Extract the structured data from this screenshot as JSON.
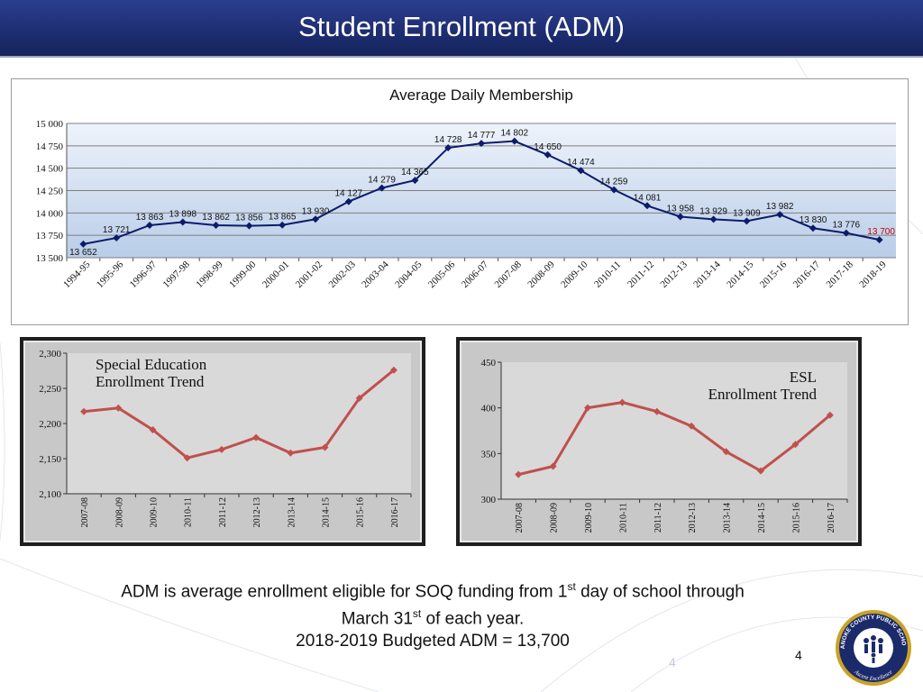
{
  "header": {
    "title": "Student Enrollment (ADM)"
  },
  "colors": {
    "header_bg": "#1b2a6b",
    "main_line": "#0d1b6b",
    "last_label": "#cc0000",
    "small_line": "#c0504d",
    "small_bg": "#c8c8c8"
  },
  "chart_data": [
    {
      "type": "line",
      "title": "Average Daily Membership",
      "categories": [
        "1994-95",
        "1995-96",
        "1996-97",
        "1997-98",
        "1998-99",
        "1999-00",
        "2000-01",
        "2001-02",
        "2002-03",
        "2003-04",
        "2004-05",
        "2005-06",
        "2006-07",
        "2007-08",
        "2008-09",
        "2009-10",
        "2010-11",
        "2011-12",
        "2012-13",
        "2013-14",
        "2014-15",
        "2015-16",
        "2016-17",
        "2017-18",
        "2018-19"
      ],
      "values": [
        13652,
        13721,
        13863,
        13898,
        13862,
        13856,
        13865,
        13930,
        14127,
        14279,
        14365,
        14728,
        14777,
        14802,
        14650,
        14474,
        14259,
        14081,
        13958,
        13929,
        13909,
        13982,
        13830,
        13776,
        13700
      ],
      "data_labels": [
        "13 652",
        "13 721",
        "13 863",
        "13 898",
        "13 862",
        "13 856",
        "13 865",
        "13 930",
        "14 127",
        "14 279",
        "14 365",
        "14 728",
        "14 777",
        "14 802",
        "14 650",
        "14 474",
        "14 259",
        "14 081",
        "13 958",
        "13 929",
        "13 909",
        "13 982",
        "13 830",
        "13 776",
        "13 700"
      ],
      "ylim": [
        13500,
        15000
      ],
      "yticks": [
        13500,
        13750,
        14000,
        14250,
        14500,
        14750,
        15000
      ],
      "ytick_labels": [
        "13 500",
        "13 750",
        "14 000",
        "14 250",
        "14 500",
        "14 750",
        "15 000"
      ],
      "grid": true,
      "legend": "none"
    },
    {
      "type": "line",
      "title": "Special Education\nEnrollment Trend",
      "title_lines": [
        "Special Education",
        "Enrollment Trend"
      ],
      "categories": [
        "2007-08",
        "2008-09",
        "2009-10",
        "2010-11",
        "2011-12",
        "2012-13",
        "2013-14",
        "2014-15",
        "2015-16",
        "2016-17"
      ],
      "values": [
        2217,
        2222,
        2191,
        2151,
        2163,
        2180,
        2158,
        2166,
        2236,
        2276
      ],
      "ylim": [
        2100,
        2300
      ],
      "yticks": [
        2100,
        2150,
        2200,
        2250,
        2300
      ],
      "ytick_labels": [
        "2,100",
        "2,150",
        "2,200",
        "2,250",
        "2,300"
      ],
      "grid": false,
      "legend": "none"
    },
    {
      "type": "line",
      "title": "ESL\nEnrollment Trend",
      "title_lines": [
        "ESL",
        "Enrollment Trend"
      ],
      "categories": [
        "2007-08",
        "2008-09",
        "2009-10",
        "2010-11",
        "2011-12",
        "2012-13",
        "2013-14",
        "2014-15",
        "2015-16",
        "2016-17"
      ],
      "values": [
        327,
        336,
        400,
        406,
        396,
        380,
        352,
        331,
        360,
        392
      ],
      "ylim": [
        300,
        450
      ],
      "yticks": [
        300,
        350,
        400,
        450
      ],
      "ytick_labels": [
        "300",
        "350",
        "400",
        "450"
      ],
      "grid": false,
      "legend": "none"
    }
  ],
  "note": {
    "line1_a": "ADM is average enrollment eligible for SOQ funding from 1",
    "line1_sup": "st",
    "line1_b": " day of school through",
    "line2_a": "March 31",
    "line2_sup": "st",
    "line2_b": " of each year.",
    "line3": "2018-2019 Budgeted ADM = 13,700"
  },
  "page": {
    "number_faded": "4",
    "number": "4"
  },
  "logo": {
    "top_text": "ROANOKE COUNTY PUBLIC SCHOOLS",
    "bottom_text": "Ascent Excellence"
  }
}
